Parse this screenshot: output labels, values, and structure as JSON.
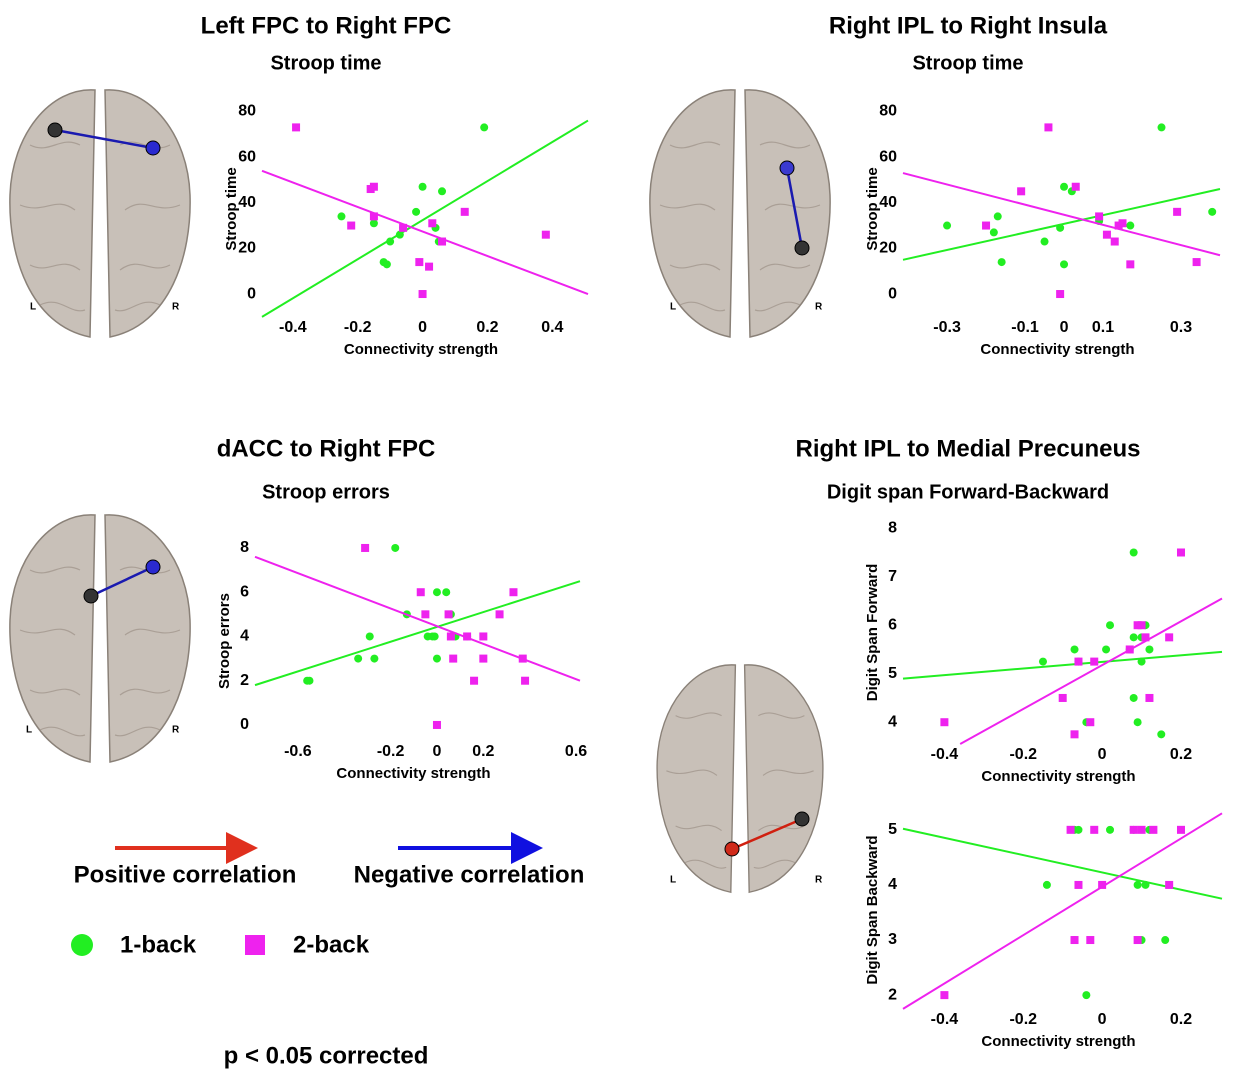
{
  "chart_data": [
    {
      "type": "scatter",
      "title": "Left FPC to Right FPC",
      "subtitle": "Stroop time",
      "xlabel": "Connectivity strength",
      "ylabel": "Stroop time",
      "xlim": [
        -0.495,
        0.51
      ],
      "ylim": [
        -10.5,
        85
      ],
      "xticks": [
        -0.4,
        -0.2,
        0,
        0.2,
        0.4
      ],
      "yticks": [
        0,
        20,
        40,
        60,
        80
      ],
      "series": [
        {
          "name": "1-back",
          "color": "#22ee22",
          "marker": "circle",
          "x": [
            0.19,
            -0.25,
            -0.15,
            -0.12,
            -0.11,
            -0.1,
            -0.07,
            -0.06,
            -0.02,
            0,
            0.06,
            0.04,
            0.05
          ],
          "y": [
            73,
            34,
            31,
            14,
            13,
            23,
            26,
            29,
            36,
            47,
            45,
            29,
            23
          ],
          "fit_x": [
            -0.495,
            0.51
          ],
          "fit_y": [
            -10,
            76
          ]
        },
        {
          "name": "2-back",
          "color": "#ee22ee",
          "marker": "square",
          "x": [
            -0.39,
            -0.16,
            -0.15,
            -0.22,
            -0.15,
            -0.06,
            0.03,
            0.13,
            -0.01,
            0.02,
            0,
            0.38,
            0.06
          ],
          "y": [
            73,
            46,
            47,
            30,
            34,
            29,
            31,
            36,
            14,
            12,
            0,
            26,
            23
          ],
          "fit_x": [
            -0.495,
            0.51
          ],
          "fit_y": [
            54,
            0
          ]
        }
      ]
    },
    {
      "type": "scatter",
      "title": "Right IPL to Right Insula",
      "subtitle": "Stroop time",
      "xlabel": "Connectivity strength",
      "ylabel": "Stroop time",
      "xlim": [
        -0.413,
        0.4
      ],
      "ylim": [
        -10.5,
        85
      ],
      "xticks": [
        -0.3,
        -0.1,
        0,
        0.1,
        0.3
      ],
      "yticks": [
        0,
        20,
        40,
        60,
        80
      ],
      "series": [
        {
          "name": "1-back",
          "color": "#22ee22",
          "marker": "circle",
          "x": [
            -0.3,
            -0.17,
            -0.16,
            -0.18,
            -0.05,
            -0.01,
            0,
            0.02,
            0,
            0.17,
            0.25,
            0.38,
            0.09
          ],
          "y": [
            30,
            34,
            14,
            27,
            23,
            29,
            47,
            45,
            13,
            30,
            73,
            36,
            32
          ],
          "fit_x": [
            -0.413,
            0.4
          ],
          "fit_y": [
            15,
            46
          ]
        },
        {
          "name": "2-back",
          "color": "#ee22ee",
          "marker": "square",
          "x": [
            -0.04,
            -0.2,
            -0.11,
            0.03,
            0.09,
            0.11,
            0.13,
            0.14,
            0.15,
            0.17,
            0.29,
            0.34,
            -0.01
          ],
          "y": [
            73,
            30,
            45,
            47,
            34,
            26,
            23,
            30,
            31,
            13,
            36,
            14,
            0
          ],
          "fit_x": [
            -0.413,
            0.4
          ],
          "fit_y": [
            53,
            17
          ]
        }
      ]
    },
    {
      "type": "scatter",
      "title": "dACC to Right FPC",
      "subtitle": "Stroop errors",
      "xlabel": "Connectivity strength",
      "ylabel": "Stroop errors",
      "xlim": [
        -0.785,
        0.617
      ],
      "ylim": [
        -0.77,
        8.36
      ],
      "xticks": [
        -0.6,
        -0.2,
        0,
        0.2,
        0.6
      ],
      "yticks": [
        0,
        2,
        4,
        6,
        8
      ],
      "series": [
        {
          "name": "1-back",
          "color": "#22ee22",
          "marker": "circle",
          "x": [
            -0.56,
            -0.55,
            -0.34,
            -0.27,
            -0.29,
            -0.18,
            -0.13,
            -0.04,
            -0.02,
            0,
            0.04,
            0,
            0.06,
            0.08,
            0.13,
            -0.01
          ],
          "y": [
            2,
            2,
            3,
            3,
            4,
            8,
            5,
            4,
            4,
            6,
            6,
            3,
            5,
            4,
            4,
            4
          ],
          "fit_x": [
            -0.785,
            0.617
          ],
          "fit_y": [
            1.8,
            6.5
          ]
        },
        {
          "name": "2-back",
          "color": "#ee22ee",
          "marker": "square",
          "x": [
            -0.31,
            -0.07,
            -0.05,
            0.05,
            0.06,
            0.07,
            0.13,
            0.16,
            0.2,
            0.2,
            0.27,
            0.33,
            0.37,
            0.38,
            0
          ],
          "y": [
            8,
            6,
            5,
            5,
            4,
            3,
            4,
            2,
            3,
            4,
            5,
            6,
            3,
            2,
            0
          ],
          "fit_x": [
            -0.785,
            0.617
          ],
          "fit_y": [
            7.6,
            2
          ]
        }
      ]
    },
    {
      "type": "scatter",
      "title": "Right IPL to Medial Precuneus",
      "subtitle": "Digit span Forward-Backward",
      "xlabel": "Connectivity strength",
      "ylabel": "Digit Span Forward",
      "xlim": [
        -0.505,
        0.304
      ],
      "ylim": [
        3.53,
        8.17
      ],
      "xticks": [
        -0.4,
        -0.2,
        0,
        0.2
      ],
      "yticks": [
        4,
        5,
        6,
        7,
        8
      ],
      "series": [
        {
          "name": "1-back",
          "color": "#22ee22",
          "marker": "circle",
          "x": [
            -0.15,
            -0.07,
            -0.06,
            -0.04,
            0.01,
            0.02,
            0.07,
            0.08,
            0.09,
            0.08,
            0.1,
            0.1,
            0.12,
            0.15,
            0.08,
            0.11
          ],
          "y": [
            5.25,
            5.5,
            5.25,
            4,
            5.5,
            6,
            5.5,
            4.5,
            4,
            7.5,
            5.75,
            5.25,
            5.5,
            3.75,
            5.75,
            6
          ],
          "fit_x": [
            -0.505,
            0.304
          ],
          "fit_y": [
            4.9,
            5.45
          ]
        },
        {
          "name": "2-back",
          "color": "#ee22ee",
          "marker": "square",
          "x": [
            -0.4,
            -0.1,
            -0.06,
            -0.03,
            -0.02,
            0.07,
            0.09,
            0.1,
            0.11,
            0.12,
            0.17,
            0.2,
            -0.07
          ],
          "y": [
            4,
            4.5,
            5.25,
            4,
            5.25,
            5.5,
            6,
            6,
            5.75,
            4.5,
            5.75,
            7.5,
            3.75
          ],
          "fit_x": [
            -0.36,
            0.304
          ],
          "fit_y": [
            3.55,
            6.55
          ]
        }
      ]
    },
    {
      "type": "scatter",
      "xlabel": "Connectivity strength",
      "ylabel": "Digit Span Backward",
      "xlim": [
        -0.505,
        0.304
      ],
      "ylim": [
        1.73,
        5.36
      ],
      "xticks": [
        -0.4,
        -0.2,
        0,
        0.2
      ],
      "yticks": [
        2,
        3,
        4,
        5
      ],
      "series": [
        {
          "name": "1-back",
          "color": "#22ee22",
          "marker": "circle",
          "x": [
            -0.07,
            -0.06,
            0.02,
            0.08,
            0.12,
            -0.14,
            0.09,
            0.11,
            -0.07,
            0.1,
            0.16,
            -0.04
          ],
          "y": [
            5,
            5,
            5,
            5,
            5,
            4,
            4,
            4,
            3,
            3,
            3,
            2
          ],
          "fit_x": [
            -0.505,
            0.304
          ],
          "fit_y": [
            5.02,
            3.75
          ]
        },
        {
          "name": "2-back",
          "color": "#ee22ee",
          "marker": "square",
          "x": [
            -0.4,
            -0.08,
            -0.02,
            0.08,
            0.1,
            0.13,
            0.2,
            -0.06,
            0,
            0.17,
            -0.07,
            -0.03,
            0.09
          ],
          "y": [
            2,
            5,
            5,
            5,
            5,
            5,
            5,
            4,
            4,
            4,
            3,
            3,
            3
          ],
          "fit_x": [
            -0.505,
            0.304
          ],
          "fit_y": [
            1.75,
            5.3
          ]
        }
      ]
    }
  ],
  "legend": {
    "positive": "Positive correlation",
    "negative": "Negative correlation"
  },
  "brain_labels": {
    "left": "L",
    "right": "R"
  },
  "footnote": "p < 0.05 corrected"
}
